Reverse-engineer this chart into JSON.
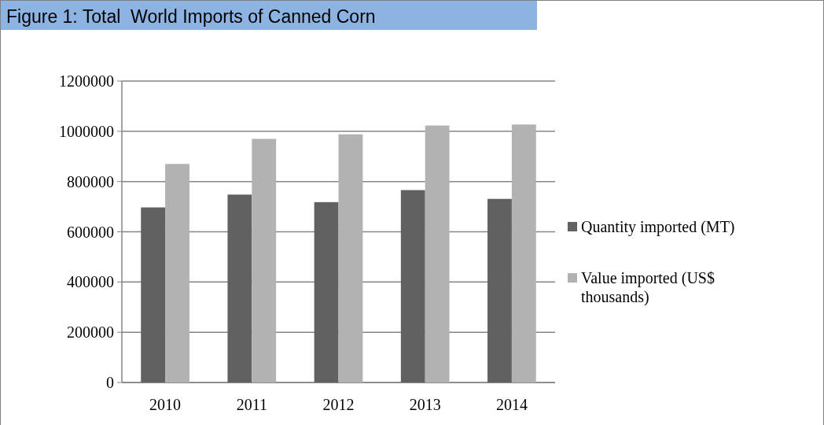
{
  "chart_data": {
    "type": "bar",
    "title": "Figure 1: Total  World Imports of Canned Corn",
    "categories": [
      "2010",
      "2011",
      "2012",
      "2013",
      "2014"
    ],
    "series": [
      {
        "name": "Quantity imported (MT)",
        "color": "#616161",
        "values": [
          697000,
          748000,
          718000,
          766000,
          731000
        ]
      },
      {
        "name": "Value imported (US$ thousands)",
        "color": "#b2b2b2",
        "values": [
          870000,
          970000,
          988000,
          1023000,
          1027000
        ]
      }
    ],
    "ylim": [
      0,
      1200000
    ],
    "yticks": [
      0,
      200000,
      400000,
      600000,
      800000,
      1000000,
      1200000
    ],
    "grid": "y",
    "legend": "right"
  }
}
